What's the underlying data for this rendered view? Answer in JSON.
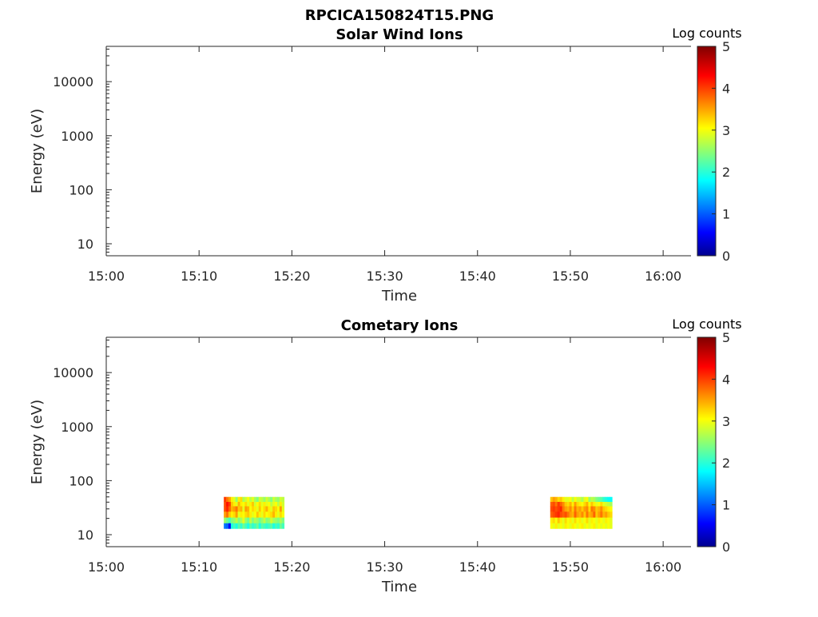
{
  "figure": {
    "title": "RPCICA150824T15.PNG"
  },
  "colormap": {
    "name": "jet",
    "stops": [
      "#00008f",
      "#0000ff",
      "#00ffff",
      "#ffff00",
      "#ff0000",
      "#800000"
    ]
  },
  "chart_data": [
    {
      "type": "heatmap",
      "title": "Solar Wind Ions",
      "xlabel": "Time",
      "ylabel": "Energy (eV)",
      "yscale": "log",
      "ylim": [
        6,
        45000
      ],
      "xlim": [
        "15:00",
        "16:03"
      ],
      "xticks": [
        "15:00",
        "15:10",
        "15:20",
        "15:30",
        "15:40",
        "15:50",
        "16:00"
      ],
      "yticks": [
        "10",
        "100",
        "1000",
        "10000"
      ],
      "colorbar": {
        "label": "Log counts",
        "range": [
          0,
          5
        ],
        "ticks": [
          "0",
          "1",
          "2",
          "3",
          "4",
          "5"
        ]
      },
      "energy_bins": [],
      "blocks": []
    },
    {
      "type": "heatmap",
      "title": "Cometary Ions",
      "xlabel": "Time",
      "ylabel": "Energy (eV)",
      "yscale": "log",
      "ylim": [
        6,
        45000
      ],
      "xlim": [
        "15:00",
        "16:03"
      ],
      "xticks": [
        "15:00",
        "15:10",
        "15:20",
        "15:30",
        "15:40",
        "15:50",
        "16:00"
      ],
      "yticks": [
        "10",
        "100",
        "1000",
        "10000"
      ],
      "colorbar": {
        "label": "Log counts",
        "range": [
          0,
          5
        ],
        "ticks": [
          "0",
          "1",
          "2",
          "3",
          "4",
          "5"
        ]
      },
      "energy_bins": [
        13,
        16.5,
        21,
        27,
        34,
        41,
        50
      ],
      "blocks": [
        {
          "start": "15:12:40",
          "end": "15:19:10",
          "columns": [
            [
              1.2,
              2.6,
              3.6,
              4.0,
              4.0,
              4.1
            ],
            [
              1.1,
              2.4,
              3.8,
              4.2,
              4.3,
              3.8
            ],
            [
              0.6,
              2.2,
              3.4,
              3.9,
              4.1,
              3.6
            ],
            [
              2.0,
              2.5,
              3.2,
              3.5,
              3.4,
              3.2
            ],
            [
              2.2,
              2.6,
              3.3,
              3.6,
              3.2,
              3.0
            ],
            [
              2.0,
              2.8,
              3.6,
              3.8,
              3.0,
              2.6
            ],
            [
              2.3,
              2.5,
              3.0,
              3.4,
              3.5,
              3.2
            ],
            [
              2.1,
              2.7,
              3.2,
              3.5,
              3.2,
              3.3
            ],
            [
              2.4,
              3.0,
              3.1,
              3.0,
              3.1,
              2.7
            ],
            [
              2.2,
              2.6,
              3.3,
              3.6,
              3.3,
              2.9
            ],
            [
              2.0,
              2.4,
              3.4,
              3.5,
              3.0,
              3.1
            ],
            [
              2.3,
              2.8,
              3.2,
              3.1,
              3.2,
              2.8
            ],
            [
              2.1,
              2.5,
              3.0,
              3.3,
              3.4,
              3.0
            ],
            [
              2.2,
              2.7,
              3.1,
              3.2,
              2.9,
              2.7
            ],
            [
              2.4,
              2.6,
              3.4,
              3.0,
              3.1,
              2.5
            ],
            [
              2.0,
              2.4,
              3.2,
              3.4,
              3.3,
              2.9
            ],
            [
              2.3,
              2.6,
              3.0,
              3.1,
              3.0,
              2.8
            ],
            [
              2.2,
              2.8,
              3.3,
              3.3,
              3.2,
              2.6
            ],
            [
              2.1,
              2.5,
              3.1,
              3.5,
              3.0,
              2.9
            ],
            [
              2.2,
              2.6,
              3.2,
              3.2,
              3.1,
              2.7
            ],
            [
              2.3,
              2.9,
              3.3,
              3.0,
              2.8,
              2.5
            ],
            [
              2.0,
              2.7,
              3.5,
              3.4,
              3.0,
              2.9
            ],
            [
              2.2,
              2.6,
              3.2,
              3.3,
              3.1,
              2.7
            ],
            [
              2.1,
              2.5,
              3.0,
              3.1,
              2.8,
              2.6
            ],
            [
              2.4,
              2.7,
              3.3,
              3.6,
              3.2,
              2.9
            ],
            [
              2.2,
              2.5,
              3.1,
              3.0,
              2.9,
              2.8
            ]
          ]
        },
        {
          "start": "15:47:50",
          "end": "15:54:30",
          "columns": [
            [
              3.1,
              3.2,
              3.9,
              4.0,
              3.9,
              3.4
            ],
            [
              3.0,
              3.3,
              4.0,
              4.1,
              4.0,
              3.6
            ],
            [
              3.2,
              3.1,
              4.1,
              4.0,
              3.8,
              3.5
            ],
            [
              3.0,
              3.4,
              4.2,
              4.1,
              4.1,
              3.3
            ],
            [
              3.1,
              3.2,
              4.0,
              4.2,
              3.9,
              3.4
            ],
            [
              3.0,
              3.0,
              3.9,
              3.8,
              3.7,
              3.2
            ],
            [
              3.2,
              3.3,
              4.0,
              3.6,
              3.4,
              3.0
            ],
            [
              3.1,
              3.1,
              3.8,
              3.5,
              3.3,
              3.0
            ],
            [
              3.0,
              3.2,
              3.6,
              3.7,
              3.5,
              3.1
            ],
            [
              3.2,
              3.0,
              3.5,
              3.4,
              3.2,
              2.8
            ],
            [
              3.1,
              3.3,
              3.9,
              3.8,
              3.6,
              3.1
            ],
            [
              3.0,
              3.1,
              3.6,
              3.5,
              3.3,
              2.9
            ],
            [
              3.1,
              3.2,
              3.5,
              3.6,
              3.2,
              2.9
            ],
            [
              3.2,
              3.0,
              3.7,
              3.4,
              3.1,
              2.7
            ],
            [
              3.0,
              3.1,
              3.4,
              3.6,
              3.3,
              3.0
            ],
            [
              3.1,
              3.3,
              3.8,
              3.7,
              3.5,
              3.1
            ],
            [
              3.0,
              3.0,
              3.5,
              3.3,
              3.1,
              2.6
            ],
            [
              3.1,
              3.2,
              3.6,
              3.8,
              3.4,
              2.8
            ],
            [
              3.2,
              3.1,
              3.9,
              3.7,
              3.2,
              2.7
            ],
            [
              3.0,
              3.0,
              3.4,
              3.4,
              3.0,
              2.5
            ],
            [
              3.1,
              3.2,
              3.6,
              3.5,
              3.1,
              2.4
            ],
            [
              3.0,
              3.1,
              3.8,
              3.7,
              3.3,
              2.3
            ],
            [
              3.1,
              3.0,
              3.5,
              3.4,
              3.0,
              2.1
            ],
            [
              3.0,
              3.2,
              3.6,
              3.3,
              2.9,
              2.0
            ],
            [
              3.1,
              3.1,
              3.4,
              3.2,
              2.8,
              1.9
            ],
            [
              3.0,
              3.0,
              3.3,
              3.1,
              2.7,
              1.9
            ]
          ]
        }
      ]
    }
  ]
}
